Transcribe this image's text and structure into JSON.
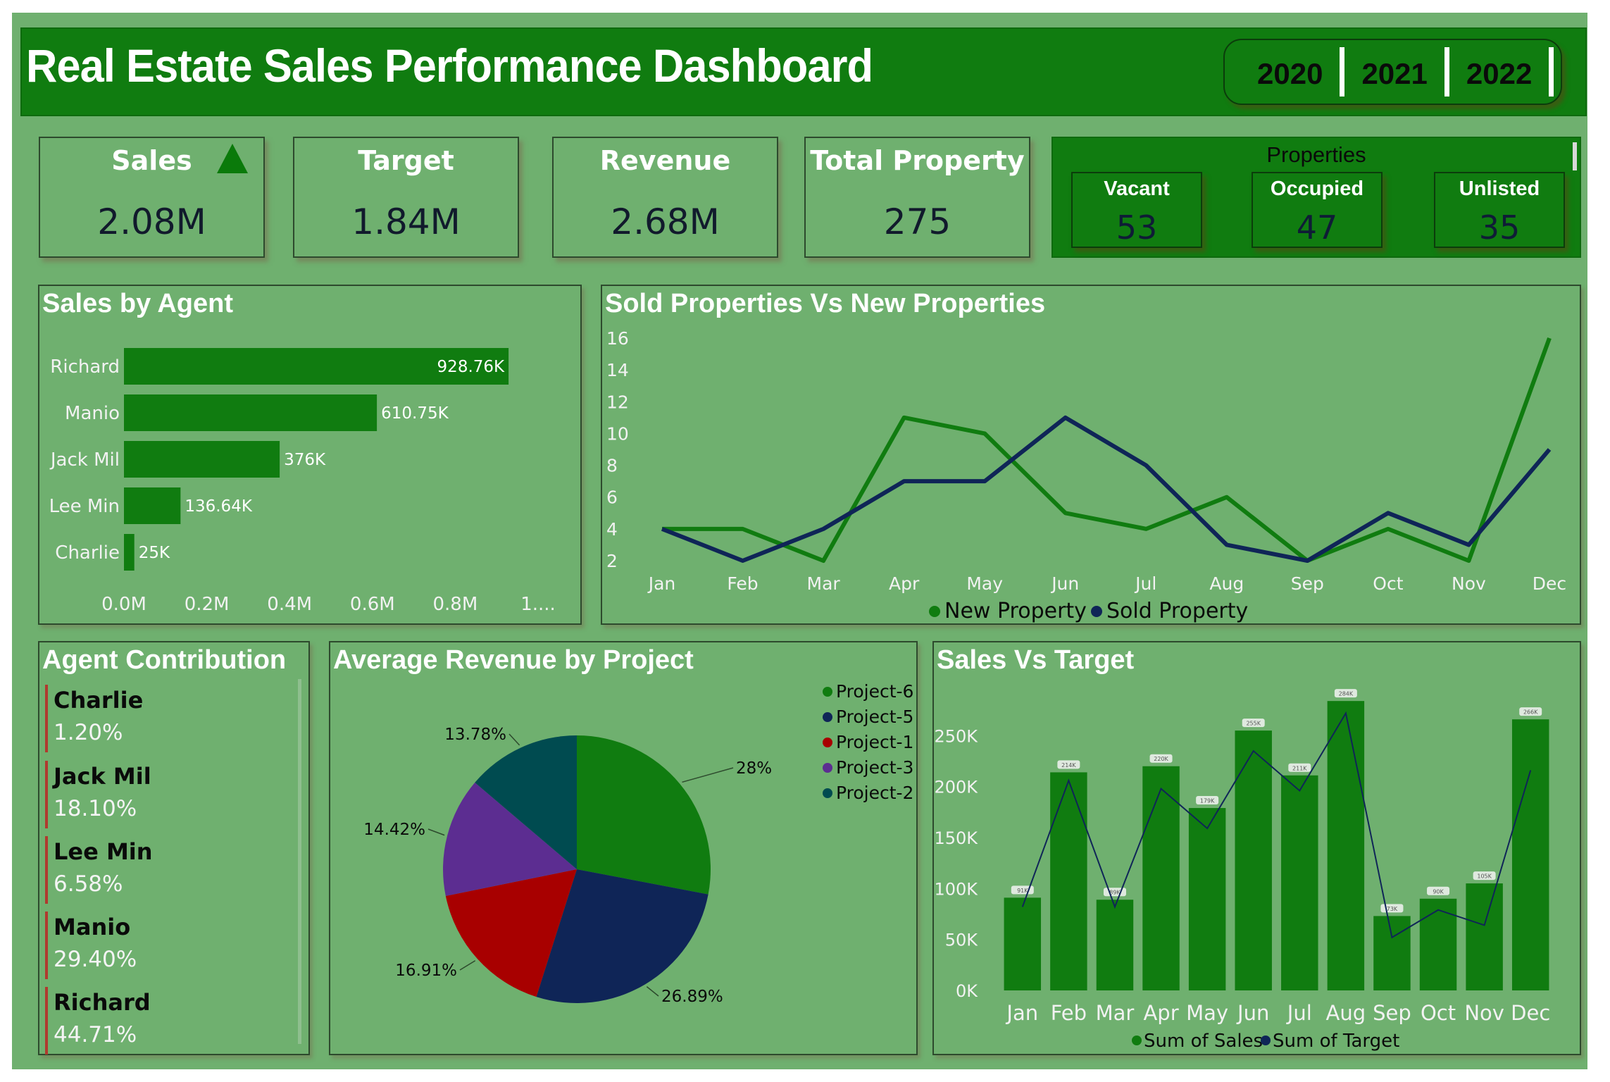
{
  "header": {
    "title": "Real Estate Sales Performance Dashboard",
    "years": [
      "2020",
      "2021",
      "2022"
    ]
  },
  "kpis": [
    {
      "label": "Sales",
      "value": "2.08M",
      "trend": "up"
    },
    {
      "label": "Target",
      "value": "1.84M"
    },
    {
      "label": "Revenue",
      "value": "2.68M"
    },
    {
      "label": "Total Property",
      "value": "275"
    }
  ],
  "properties": {
    "title": "Properties",
    "items": [
      {
        "label": "Vacant",
        "value": "53"
      },
      {
        "label": "Occupied",
        "value": "47"
      },
      {
        "label": "Unlisted",
        "value": "35"
      }
    ]
  },
  "colors": {
    "background": "#6fb06f",
    "accent_green": "#107c10",
    "navy": "#0f2557",
    "red": "#a80000",
    "purple": "#5c2d91",
    "teal": "#004b50",
    "contribution_marker": "#b03a2e"
  },
  "agent_contribution": {
    "title": "Agent Contribution",
    "items": [
      {
        "name": "Charlie",
        "pct": "1.20%"
      },
      {
        "name": "Jack Mil",
        "pct": "18.10%"
      },
      {
        "name": "Lee Min",
        "pct": "6.58%"
      },
      {
        "name": "Manio",
        "pct": "29.40%"
      },
      {
        "name": "Richard",
        "pct": "44.71%"
      }
    ]
  },
  "chart_data": [
    {
      "id": "sales_by_agent",
      "type": "bar",
      "orientation": "horizontal",
      "title": "Sales by Agent",
      "categories": [
        "Richard",
        "Manio",
        "Jack Mil",
        "Lee Min",
        "Charlie"
      ],
      "values": [
        928760,
        610750,
        376000,
        136640,
        25000
      ],
      "data_labels": [
        "928.76K",
        "610.75K",
        "376K",
        "136.64K",
        "25K"
      ],
      "xticks": [
        "0.0M",
        "0.2M",
        "0.4M",
        "0.6M",
        "0.8M",
        "1...."
      ],
      "xlim": [
        0,
        1000000
      ],
      "grid": false
    },
    {
      "id": "sold_vs_new",
      "type": "line",
      "title": "Sold Properties Vs New Properties",
      "categories": [
        "Jan",
        "Feb",
        "Mar",
        "Apr",
        "May",
        "Jun",
        "Jul",
        "Aug",
        "Sep",
        "Oct",
        "Nov",
        "Dec"
      ],
      "series": [
        {
          "name": "New Property",
          "color": "#107c10",
          "values": [
            4,
            4,
            2,
            11,
            10,
            5,
            4,
            6,
            2,
            4,
            2,
            16
          ]
        },
        {
          "name": "Sold Property",
          "color": "#0f2557",
          "values": [
            4,
            2,
            4,
            7,
            7,
            11,
            8,
            3,
            2,
            5,
            3,
            9
          ]
        }
      ],
      "yticks": [
        "2",
        "4",
        "6",
        "8",
        "10",
        "12",
        "14",
        "16"
      ],
      "ylim": [
        2,
        16
      ],
      "legend": "bottom-center",
      "grid": false
    },
    {
      "id": "avg_revenue_by_project",
      "type": "pie",
      "title": "Average Revenue by Project",
      "slices": [
        {
          "name": "Project-6",
          "value": 28.0,
          "label": "28%",
          "color": "#107c10"
        },
        {
          "name": "Project-5",
          "value": 26.89,
          "label": "26.89%",
          "color": "#0f2557"
        },
        {
          "name": "Project-1",
          "value": 16.91,
          "label": "16.91%",
          "color": "#a80000"
        },
        {
          "name": "Project-3",
          "value": 14.42,
          "label": "14.42%",
          "color": "#5c2d91"
        },
        {
          "name": "Project-2",
          "value": 13.78,
          "label": "13.78%",
          "color": "#004b50"
        }
      ],
      "legend": "top-right"
    },
    {
      "id": "sales_vs_target",
      "type": "bar",
      "title": "Sales Vs Target",
      "categories": [
        "Jan",
        "Feb",
        "Mar",
        "Apr",
        "May",
        "Jun",
        "Jul",
        "Aug",
        "Sep",
        "Oct",
        "Nov",
        "Dec"
      ],
      "series": [
        {
          "name": "Sum of Sales",
          "type": "bar",
          "color": "#107c10",
          "values": [
            91000,
            214000,
            89000,
            220000,
            179000,
            255000,
            211000,
            284000,
            73000,
            90000,
            105000,
            266000
          ],
          "data_labels": [
            "91K",
            "214K",
            "89K",
            "220K",
            "179K",
            "255K",
            "211K",
            "284K",
            "73K",
            "90K",
            "105K",
            "266K"
          ]
        },
        {
          "name": "Sum of Target",
          "type": "line",
          "color": "#0f2557",
          "values": [
            82000,
            206000,
            82000,
            198000,
            159000,
            235000,
            196000,
            272000,
            52000,
            79000,
            64000,
            216000
          ]
        }
      ],
      "yticks": [
        "0K",
        "50K",
        "100K",
        "150K",
        "200K",
        "250K"
      ],
      "ylim": [
        0,
        300000
      ],
      "legend": "bottom-center",
      "grid": false
    }
  ]
}
